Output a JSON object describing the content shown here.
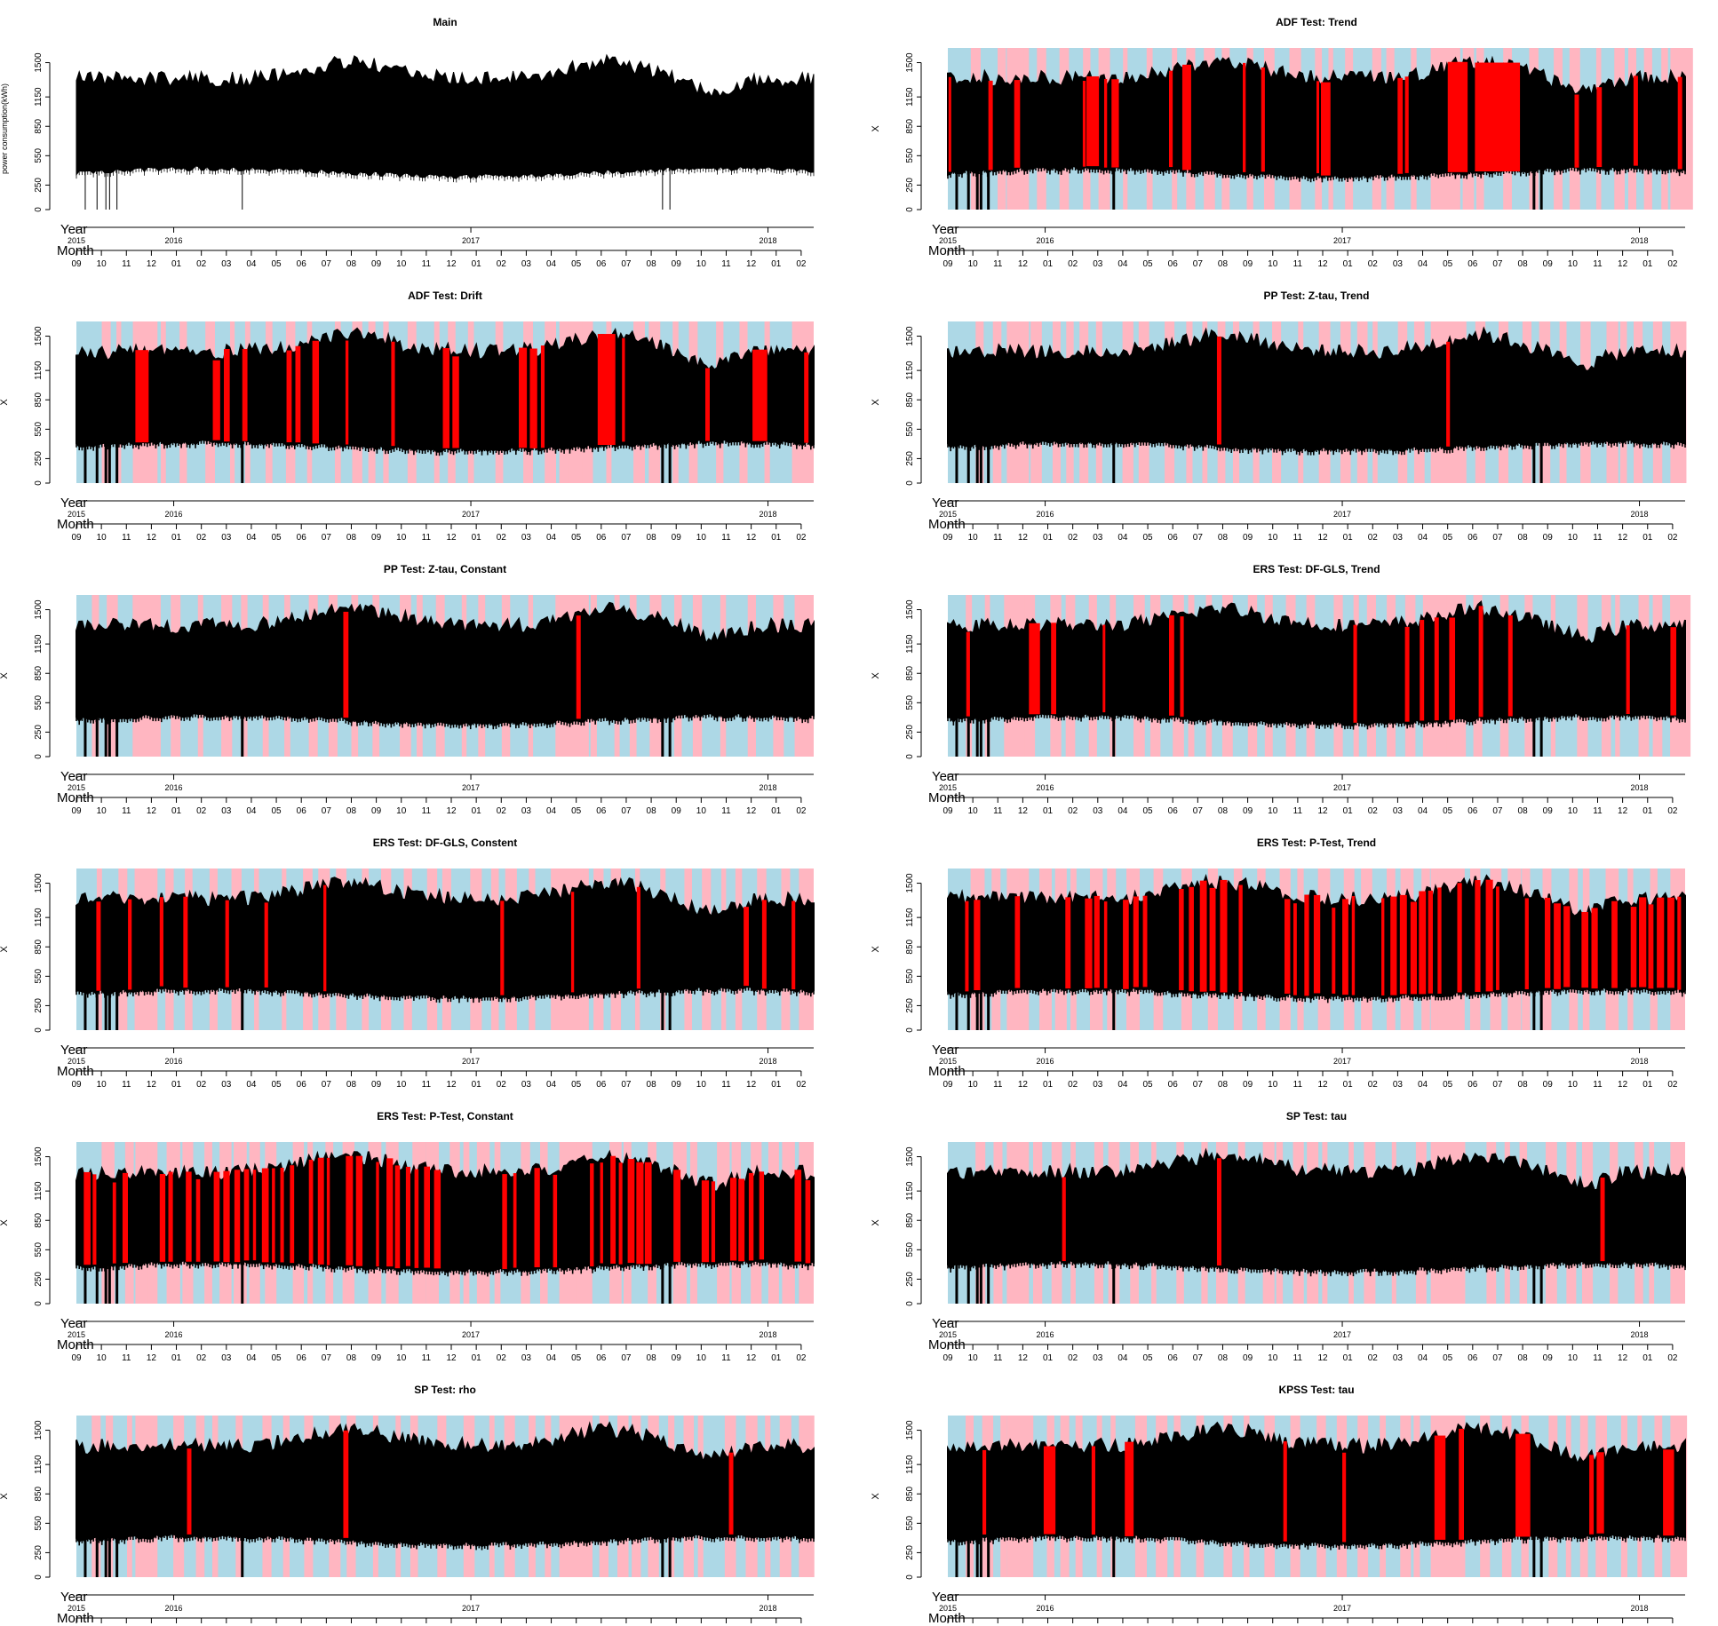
{
  "chart_data": [
    {
      "type": "line",
      "title": "Main",
      "ylabel": "power consumption(kWh)",
      "shading": false,
      "red": [],
      "seed": 1
    },
    {
      "type": "line",
      "title": "ADF Test: Trend",
      "ylabel": "X",
      "shading": true,
      "seed": 2,
      "red": [
        [
          0.001,
          0.004
        ],
        [
          0.055,
          0.061
        ],
        [
          0.09,
          0.098
        ],
        [
          0.183,
          0.187
        ],
        [
          0.188,
          0.205
        ],
        [
          0.212,
          0.216
        ],
        [
          0.222,
          0.232
        ],
        [
          0.3,
          0.305
        ],
        [
          0.318,
          0.33
        ],
        [
          0.4,
          0.404
        ],
        [
          0.425,
          0.43
        ],
        [
          0.5,
          0.503
        ],
        [
          0.506,
          0.519
        ],
        [
          0.61,
          0.617
        ],
        [
          0.62,
          0.625
        ],
        [
          0.678,
          0.705
        ],
        [
          0.715,
          0.72
        ],
        [
          0.716,
          0.722
        ],
        [
          0.715,
          0.76
        ],
        [
          0.715,
          0.776
        ],
        [
          0.85,
          0.856
        ],
        [
          0.88,
          0.887
        ],
        [
          0.93,
          0.936
        ],
        [
          0.99,
          0.996
        ]
      ]
    },
    {
      "type": "line",
      "title": "ADF Test: Drift",
      "ylabel": "X",
      "shading": true,
      "seed": 3,
      "red": [
        [
          0.08,
          0.098
        ],
        [
          0.185,
          0.195
        ],
        [
          0.2,
          0.208
        ],
        [
          0.225,
          0.232
        ],
        [
          0.285,
          0.292
        ],
        [
          0.297,
          0.304
        ],
        [
          0.32,
          0.329
        ],
        [
          0.365,
          0.369
        ],
        [
          0.427,
          0.432
        ],
        [
          0.497,
          0.506
        ],
        [
          0.51,
          0.519
        ],
        [
          0.6,
          0.611
        ],
        [
          0.615,
          0.625
        ],
        [
          0.63,
          0.635
        ],
        [
          0.707,
          0.731
        ],
        [
          0.74,
          0.744
        ],
        [
          0.853,
          0.859
        ],
        [
          0.917,
          0.937
        ],
        [
          0.987,
          0.993
        ]
      ]
    },
    {
      "type": "line",
      "title": "PP Test: Z-tau, Trend",
      "ylabel": "X",
      "shading": true,
      "seed": 4,
      "red": [
        [
          0.365,
          0.371
        ],
        [
          0.676,
          0.681
        ]
      ]
    },
    {
      "type": "line",
      "title": "PP Test: Z-tau, Constant",
      "ylabel": "X",
      "shading": true,
      "seed": 5,
      "red": [
        [
          0.362,
          0.369
        ],
        [
          0.678,
          0.684
        ]
      ]
    },
    {
      "type": "line",
      "title": "ERS Test: DF-GLS, Trend",
      "ylabel": "X",
      "shading": true,
      "seed": 6,
      "red": [
        [
          0.025,
          0.03
        ],
        [
          0.11,
          0.125
        ],
        [
          0.14,
          0.147
        ],
        [
          0.21,
          0.213
        ],
        [
          0.3,
          0.307
        ],
        [
          0.315,
          0.32
        ],
        [
          0.55,
          0.555
        ],
        [
          0.62,
          0.626
        ],
        [
          0.64,
          0.646
        ],
        [
          0.66,
          0.666
        ],
        [
          0.68,
          0.688
        ],
        [
          0.72,
          0.726
        ],
        [
          0.76,
          0.766
        ],
        [
          0.92,
          0.925
        ],
        [
          0.98,
          0.988
        ]
      ]
    },
    {
      "type": "line",
      "title": "ERS Test: DF-GLS, Constent",
      "ylabel": "X",
      "shading": true,
      "seed": 7,
      "red": [
        [
          0.027,
          0.033
        ],
        [
          0.07,
          0.075
        ],
        [
          0.113,
          0.118
        ],
        [
          0.145,
          0.151
        ],
        [
          0.202,
          0.207
        ],
        [
          0.255,
          0.26
        ],
        [
          0.335,
          0.339
        ],
        [
          0.575,
          0.58
        ],
        [
          0.671,
          0.675
        ],
        [
          0.76,
          0.765
        ],
        [
          0.905,
          0.912
        ],
        [
          0.93,
          0.936
        ],
        [
          0.97,
          0.975
        ]
      ]
    },
    {
      "type": "line",
      "title": "ERS Test: P-Test, Trend",
      "ylabel": "X",
      "shading": "dense",
      "seed": 8,
      "red": "dense"
    },
    {
      "type": "line",
      "title": "ERS Test: P-Test, Constant",
      "ylabel": "X",
      "shading": "dense",
      "seed": 9,
      "red": "dense"
    },
    {
      "type": "line",
      "title": "SP Test: tau",
      "ylabel": "X",
      "shading": true,
      "seed": 10,
      "red": [
        [
          0.155,
          0.16
        ],
        [
          0.365,
          0.371
        ],
        [
          0.885,
          0.891
        ]
      ]
    },
    {
      "type": "line",
      "title": "SP Test: rho",
      "ylabel": "X",
      "shading": true,
      "seed": 11,
      "red": [
        [
          0.15,
          0.156
        ],
        [
          0.362,
          0.369
        ],
        [
          0.885,
          0.891
        ]
      ]
    },
    {
      "type": "line",
      "title": "KPSS Test: tau",
      "ylabel": "X",
      "shading": true,
      "seed": 12,
      "red": [
        [
          0.047,
          0.052
        ],
        [
          0.13,
          0.146
        ],
        [
          0.195,
          0.2
        ],
        [
          0.24,
          0.252
        ],
        [
          0.455,
          0.46
        ],
        [
          0.535,
          0.54
        ],
        [
          0.66,
          0.675
        ],
        [
          0.693,
          0.7
        ],
        [
          0.77,
          0.79
        ],
        [
          0.87,
          0.876
        ],
        [
          0.88,
          0.89
        ],
        [
          0.97,
          0.985
        ]
      ]
    }
  ],
  "y_axis": {
    "ticks": [
      "0",
      "250",
      "550",
      "850",
      "1150",
      "1500"
    ],
    "values": [
      0,
      250,
      550,
      850,
      1150,
      1500
    ],
    "max": 1650
  },
  "x_axis": {
    "year_label": "Year",
    "month_label": "Month",
    "years": [
      {
        "label": "2015",
        "frac": 0.0
      },
      {
        "label": "2016",
        "frac": 0.132
      },
      {
        "label": "2017",
        "frac": 0.535
      },
      {
        "label": "2018",
        "frac": 0.938
      }
    ],
    "months": [
      "09",
      "10",
      "11",
      "12",
      "01",
      "02",
      "03",
      "04",
      "05",
      "06",
      "07",
      "08",
      "09",
      "10",
      "11",
      "12",
      "01",
      "02",
      "03",
      "04",
      "05",
      "06",
      "07",
      "08",
      "09",
      "10",
      "11",
      "12",
      "01",
      "02"
    ]
  },
  "colors": {
    "line": "#000000",
    "highlight": "#ff0000",
    "blue": "#add8e6",
    "pink": "#ffb6c1"
  }
}
